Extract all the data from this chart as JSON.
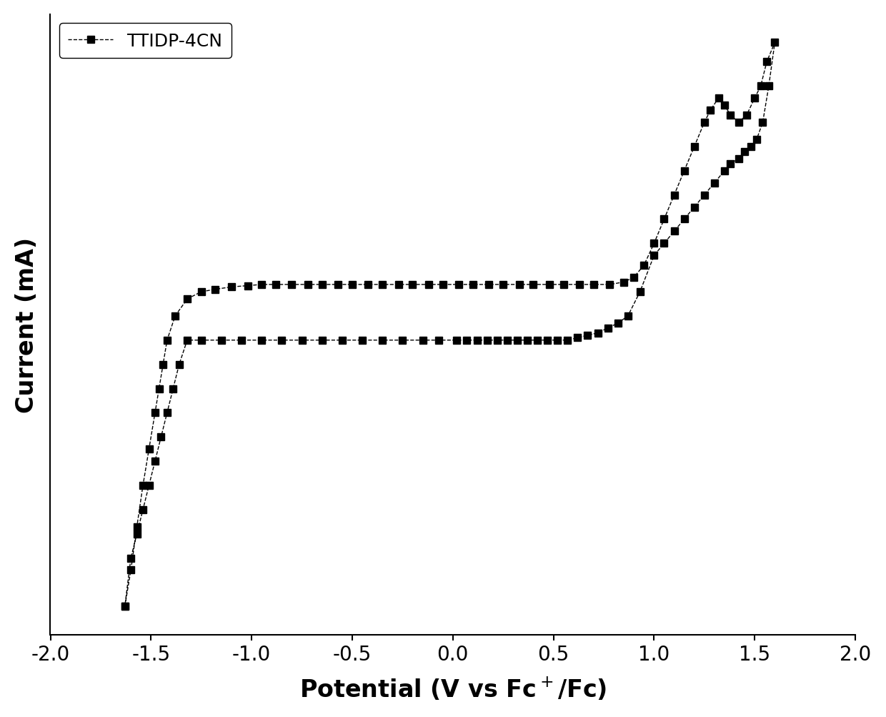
{
  "xlabel": "Potential (V vs Fc$^+$/Fc)",
  "ylabel": "Current (mA)",
  "xlim": [
    -2.0,
    2.0
  ],
  "xticks": [
    -2.0,
    -1.5,
    -1.0,
    -0.5,
    0.0,
    0.5,
    1.0,
    1.5,
    2.0
  ],
  "legend_label": "TTIDP-4CN",
  "line_color": "#000000",
  "marker": "s",
  "markersize": 7,
  "linestyle": "--",
  "background_color": "#ffffff",
  "x_data": [
    -1.63,
    -1.6,
    -1.57,
    -1.54,
    -1.51,
    -1.48,
    -1.46,
    -1.44,
    -1.42,
    -1.38,
    -1.32,
    -1.25,
    -1.18,
    -1.1,
    -1.02,
    -0.95,
    -0.88,
    -0.8,
    -0.72,
    -0.65,
    -0.57,
    -0.5,
    -0.42,
    -0.35,
    -0.27,
    -0.2,
    -0.12,
    -0.05,
    0.03,
    0.1,
    0.18,
    0.25,
    0.33,
    0.4,
    0.48,
    0.55,
    0.63,
    0.7,
    0.78,
    0.85,
    0.9,
    0.95,
    1.0,
    1.05,
    1.1,
    1.15,
    1.2,
    1.25,
    1.28,
    1.32,
    1.35,
    1.38,
    1.42,
    1.46,
    1.5,
    1.53,
    1.56,
    1.6,
    1.57,
    1.54,
    1.51,
    1.48,
    1.45,
    1.42,
    1.38,
    1.35,
    1.3,
    1.25,
    1.2,
    1.15,
    1.1,
    1.05,
    1.0,
    0.93,
    0.87,
    0.82,
    0.77,
    0.72,
    0.67,
    0.62,
    0.57,
    0.52,
    0.47,
    0.42,
    0.37,
    0.32,
    0.27,
    0.22,
    0.17,
    0.12,
    0.07,
    0.02,
    -0.07,
    -0.15,
    -0.25,
    -0.35,
    -0.45,
    -0.55,
    -0.65,
    -0.75,
    -0.85,
    -0.95,
    -1.05,
    -1.15,
    -1.25,
    -1.32,
    -1.36,
    -1.39,
    -1.42,
    -1.45,
    -1.48,
    -1.51,
    -1.54,
    -1.57,
    -1.6,
    -1.63
  ],
  "y_data": [
    -9.5,
    -8.0,
    -6.2,
    -4.5,
    -3.0,
    -1.5,
    -0.5,
    0.5,
    1.5,
    2.5,
    3.2,
    3.5,
    3.6,
    3.7,
    3.75,
    3.8,
    3.8,
    3.8,
    3.8,
    3.8,
    3.8,
    3.8,
    3.8,
    3.8,
    3.8,
    3.8,
    3.8,
    3.8,
    3.8,
    3.8,
    3.8,
    3.8,
    3.8,
    3.8,
    3.8,
    3.8,
    3.8,
    3.8,
    3.8,
    3.9,
    4.1,
    4.6,
    5.5,
    6.5,
    7.5,
    8.5,
    9.5,
    10.5,
    11.0,
    11.5,
    11.2,
    10.8,
    10.5,
    10.8,
    11.5,
    12.0,
    13.0,
    13.8,
    12.0,
    10.5,
    9.8,
    9.5,
    9.3,
    9.0,
    8.8,
    8.5,
    8.0,
    7.5,
    7.0,
    6.5,
    6.0,
    5.5,
    5.0,
    3.5,
    2.5,
    2.2,
    2.0,
    1.8,
    1.7,
    1.6,
    1.5,
    1.5,
    1.5,
    1.5,
    1.5,
    1.5,
    1.5,
    1.5,
    1.5,
    1.5,
    1.5,
    1.5,
    1.5,
    1.5,
    1.5,
    1.5,
    1.5,
    1.5,
    1.5,
    1.5,
    1.5,
    1.5,
    1.5,
    1.5,
    1.5,
    1.5,
    0.5,
    -0.5,
    -1.5,
    -2.5,
    -3.5,
    -4.5,
    -5.5,
    -6.5,
    -7.5,
    -9.5
  ]
}
